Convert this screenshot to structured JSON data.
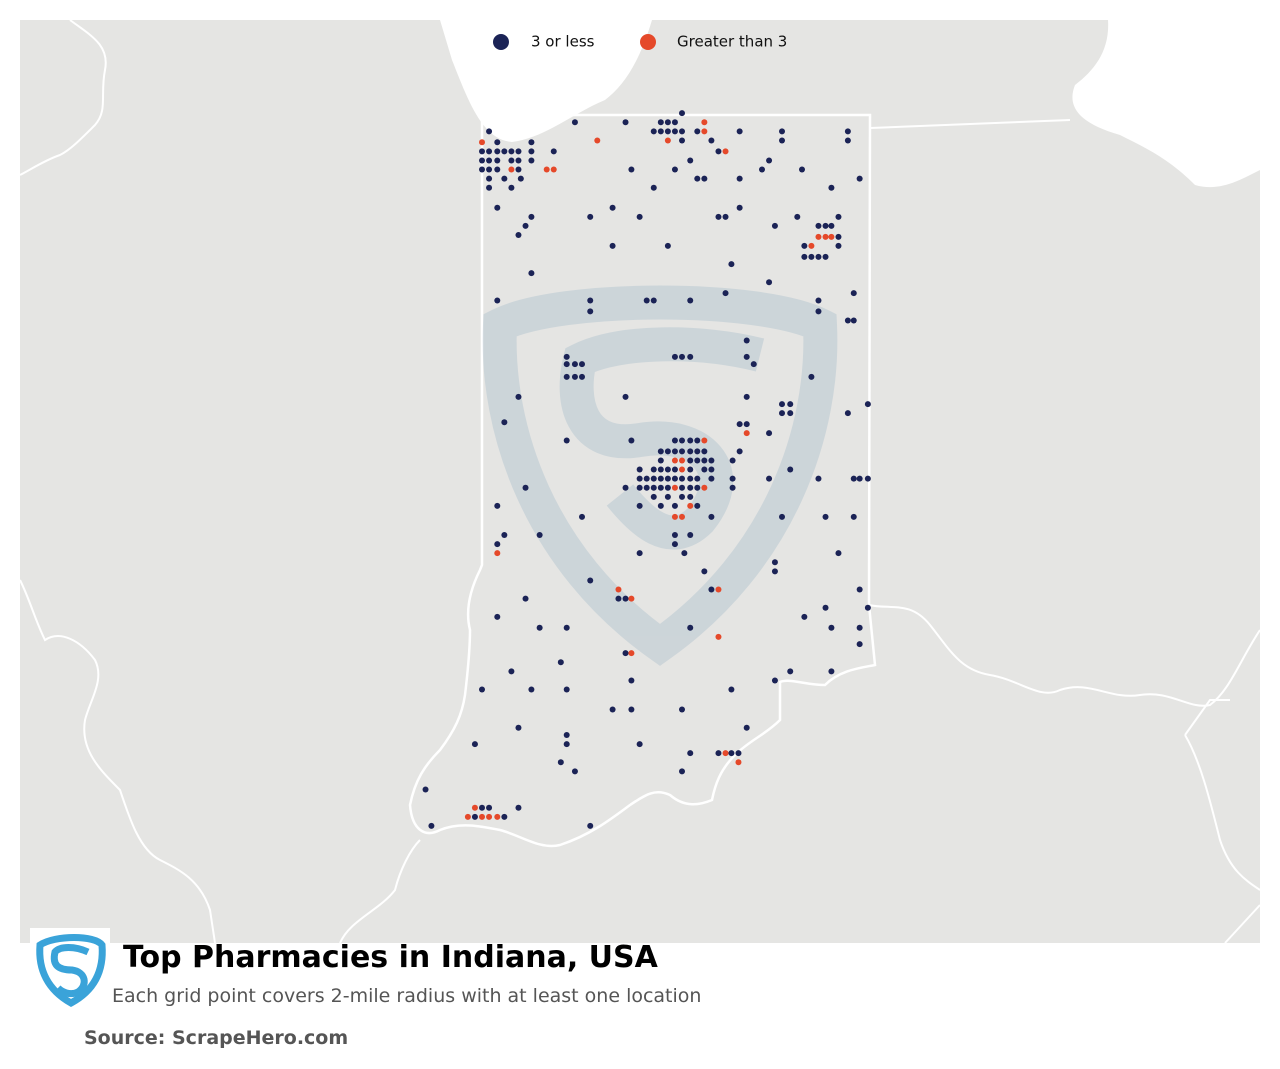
{
  "chart_data": {
    "type": "map",
    "title": "Top Pharmacies in Indiana, USA",
    "subtitle": "Each grid point covers 2-mile radius with at least one location",
    "source": "Source: ScrapeHero.com",
    "series": [
      {
        "name": "3 or less",
        "color": "#1b2356",
        "points": [
          [
            -88.04,
            41.67
          ],
          [
            -86.64,
            41.67
          ],
          [
            -86.58,
            41.67
          ],
          [
            -86.52,
            41.67
          ],
          [
            -86.46,
            41.67
          ],
          [
            -86.4,
            41.67
          ],
          [
            -86.27,
            41.67
          ],
          [
            -85.91,
            41.67
          ],
          [
            -85.55,
            41.67
          ],
          [
            -84.99,
            41.67
          ],
          [
            -87.97,
            41.61
          ],
          [
            -87.68,
            41.61
          ],
          [
            -86.4,
            41.62
          ],
          [
            -86.15,
            41.62
          ],
          [
            -85.55,
            41.62
          ],
          [
            -84.99,
            41.62
          ],
          [
            -88.1,
            41.56
          ],
          [
            -88.04,
            41.56
          ],
          [
            -87.97,
            41.56
          ],
          [
            -87.91,
            41.56
          ],
          [
            -87.85,
            41.56
          ],
          [
            -87.79,
            41.56
          ],
          [
            -87.68,
            41.56
          ],
          [
            -87.49,
            41.56
          ],
          [
            -86.09,
            41.56
          ],
          [
            -88.1,
            41.51
          ],
          [
            -88.04,
            41.51
          ],
          [
            -87.97,
            41.51
          ],
          [
            -87.85,
            41.51
          ],
          [
            -87.79,
            41.51
          ],
          [
            -87.68,
            41.51
          ],
          [
            -86.33,
            41.51
          ],
          [
            -85.66,
            41.51
          ],
          [
            -88.1,
            41.46
          ],
          [
            -88.04,
            41.46
          ],
          [
            -87.97,
            41.46
          ],
          [
            -87.79,
            41.46
          ],
          [
            -86.83,
            41.46
          ],
          [
            -86.46,
            41.46
          ],
          [
            -85.72,
            41.46
          ],
          [
            -85.38,
            41.46
          ],
          [
            -88.04,
            41.41
          ],
          [
            -87.91,
            41.41
          ],
          [
            -87.77,
            41.41
          ],
          [
            -86.27,
            41.41
          ],
          [
            -86.21,
            41.41
          ],
          [
            -85.91,
            41.41
          ],
          [
            -84.89,
            41.41
          ],
          [
            -88.04,
            41.36
          ],
          [
            -87.85,
            41.36
          ],
          [
            -86.64,
            41.36
          ],
          [
            -85.13,
            41.36
          ],
          [
            -86.4,
            41.77
          ],
          [
            -87.31,
            41.72
          ],
          [
            -86.88,
            41.72
          ],
          [
            -86.58,
            41.72
          ],
          [
            -86.52,
            41.72
          ],
          [
            -86.46,
            41.72
          ],
          [
            -87.97,
            41.25
          ],
          [
            -86.99,
            41.25
          ],
          [
            -85.91,
            41.25
          ],
          [
            -87.68,
            41.2
          ],
          [
            -87.18,
            41.2
          ],
          [
            -86.76,
            41.2
          ],
          [
            -86.09,
            41.2
          ],
          [
            -86.03,
            41.2
          ],
          [
            -85.42,
            41.2
          ],
          [
            -85.07,
            41.2
          ],
          [
            -87.73,
            41.15
          ],
          [
            -85.61,
            41.15
          ],
          [
            -85.24,
            41.15
          ],
          [
            -85.18,
            41.15
          ],
          [
            -85.13,
            41.15
          ],
          [
            -87.79,
            41.1
          ],
          [
            -85.07,
            41.09
          ],
          [
            -86.99,
            41.04
          ],
          [
            -86.52,
            41.04
          ],
          [
            -85.36,
            41.04
          ],
          [
            -85.07,
            41.04
          ],
          [
            -85.36,
            40.98
          ],
          [
            -85.3,
            40.98
          ],
          [
            -85.24,
            40.98
          ],
          [
            -85.18,
            40.98
          ],
          [
            -85.98,
            40.94
          ],
          [
            -87.68,
            40.89
          ],
          [
            -85.66,
            40.84
          ],
          [
            -86.03,
            40.78
          ],
          [
            -84.94,
            40.78
          ],
          [
            -87.97,
            40.74
          ],
          [
            -87.18,
            40.74
          ],
          [
            -86.7,
            40.74
          ],
          [
            -86.64,
            40.74
          ],
          [
            -86.33,
            40.74
          ],
          [
            -85.24,
            40.74
          ],
          [
            -87.18,
            40.68
          ],
          [
            -85.24,
            40.68
          ],
          [
            -84.99,
            40.63
          ],
          [
            -84.94,
            40.63
          ],
          [
            -85.85,
            40.52
          ],
          [
            -87.38,
            40.43
          ],
          [
            -86.46,
            40.43
          ],
          [
            -86.4,
            40.43
          ],
          [
            -86.33,
            40.43
          ],
          [
            -85.85,
            40.43
          ],
          [
            -87.38,
            40.39
          ],
          [
            -87.31,
            40.39
          ],
          [
            -87.25,
            40.39
          ],
          [
            -85.79,
            40.39
          ],
          [
            -87.38,
            40.32
          ],
          [
            -87.31,
            40.32
          ],
          [
            -87.25,
            40.32
          ],
          [
            -85.3,
            40.32
          ],
          [
            -87.79,
            40.21
          ],
          [
            -86.88,
            40.21
          ],
          [
            -85.85,
            40.21
          ],
          [
            -85.55,
            40.17
          ],
          [
            -85.48,
            40.17
          ],
          [
            -84.82,
            40.17
          ],
          [
            -85.55,
            40.12
          ],
          [
            -85.48,
            40.12
          ],
          [
            -84.99,
            40.12
          ],
          [
            -87.91,
            40.07
          ],
          [
            -85.91,
            40.06
          ],
          [
            -85.85,
            40.06
          ],
          [
            -85.66,
            40.01
          ],
          [
            -87.38,
            39.97
          ],
          [
            -86.83,
            39.97
          ],
          [
            -86.46,
            39.97
          ],
          [
            -86.4,
            39.97
          ],
          [
            -86.33,
            39.97
          ],
          [
            -86.27,
            39.97
          ],
          [
            -86.58,
            39.91
          ],
          [
            -86.52,
            39.91
          ],
          [
            -86.46,
            39.91
          ],
          [
            -86.4,
            39.91
          ],
          [
            -86.33,
            39.91
          ],
          [
            -86.27,
            39.91
          ],
          [
            -86.21,
            39.91
          ],
          [
            -85.91,
            39.91
          ],
          [
            -86.58,
            39.86
          ],
          [
            -86.33,
            39.86
          ],
          [
            -86.27,
            39.86
          ],
          [
            -86.21,
            39.86
          ],
          [
            -86.15,
            39.86
          ],
          [
            -85.97,
            39.86
          ],
          [
            -86.76,
            39.81
          ],
          [
            -86.64,
            39.81
          ],
          [
            -86.58,
            39.81
          ],
          [
            -86.52,
            39.81
          ],
          [
            -86.46,
            39.81
          ],
          [
            -86.33,
            39.81
          ],
          [
            -86.21,
            39.81
          ],
          [
            -86.15,
            39.81
          ],
          [
            -85.48,
            39.81
          ],
          [
            -86.76,
            39.76
          ],
          [
            -86.7,
            39.76
          ],
          [
            -86.64,
            39.76
          ],
          [
            -86.58,
            39.76
          ],
          [
            -86.52,
            39.76
          ],
          [
            -86.46,
            39.76
          ],
          [
            -86.4,
            39.76
          ],
          [
            -86.33,
            39.76
          ],
          [
            -86.27,
            39.76
          ],
          [
            -86.15,
            39.76
          ],
          [
            -85.97,
            39.76
          ],
          [
            -85.66,
            39.76
          ],
          [
            -85.24,
            39.76
          ],
          [
            -84.94,
            39.76
          ],
          [
            -84.89,
            39.76
          ],
          [
            -84.82,
            39.76
          ],
          [
            -87.73,
            39.71
          ],
          [
            -86.88,
            39.71
          ],
          [
            -86.76,
            39.71
          ],
          [
            -86.7,
            39.71
          ],
          [
            -86.64,
            39.71
          ],
          [
            -86.58,
            39.71
          ],
          [
            -86.52,
            39.71
          ],
          [
            -86.4,
            39.71
          ],
          [
            -86.33,
            39.71
          ],
          [
            -86.27,
            39.71
          ],
          [
            -85.97,
            39.71
          ],
          [
            -86.64,
            39.66
          ],
          [
            -86.52,
            39.66
          ],
          [
            -86.4,
            39.66
          ],
          [
            -86.33,
            39.66
          ],
          [
            -87.97,
            39.61
          ],
          [
            -86.76,
            39.61
          ],
          [
            -86.58,
            39.61
          ],
          [
            -86.46,
            39.61
          ],
          [
            -86.27,
            39.61
          ],
          [
            -87.25,
            39.55
          ],
          [
            -86.15,
            39.55
          ],
          [
            -85.55,
            39.55
          ],
          [
            -85.18,
            39.55
          ],
          [
            -84.94,
            39.55
          ],
          [
            -87.91,
            39.45
          ],
          [
            -87.61,
            39.45
          ],
          [
            -86.46,
            39.45
          ],
          [
            -86.33,
            39.45
          ],
          [
            -87.97,
            39.4
          ],
          [
            -86.46,
            39.4
          ],
          [
            -86.76,
            39.35
          ],
          [
            -86.38,
            39.35
          ],
          [
            -85.07,
            39.35
          ],
          [
            -85.61,
            39.3
          ],
          [
            -86.21,
            39.25
          ],
          [
            -85.61,
            39.25
          ],
          [
            -87.18,
            39.2
          ],
          [
            -86.15,
            39.15
          ],
          [
            -84.89,
            39.15
          ],
          [
            -87.73,
            39.1
          ],
          [
            -86.94,
            39.1
          ],
          [
            -86.88,
            39.1
          ],
          [
            -85.18,
            39.05
          ],
          [
            -84.82,
            39.05
          ],
          [
            -87.97,
            39.0
          ],
          [
            -85.36,
            39.0
          ],
          [
            -87.61,
            38.94
          ],
          [
            -87.38,
            38.94
          ],
          [
            -86.33,
            38.94
          ],
          [
            -85.13,
            38.94
          ],
          [
            -84.89,
            38.94
          ],
          [
            -84.89,
            38.85
          ],
          [
            -86.88,
            38.8
          ],
          [
            -87.43,
            38.75
          ],
          [
            -87.85,
            38.7
          ],
          [
            -85.48,
            38.7
          ],
          [
            -85.13,
            38.7
          ],
          [
            -86.83,
            38.65
          ],
          [
            -85.61,
            38.65
          ],
          [
            -88.1,
            38.6
          ],
          [
            -87.68,
            38.6
          ],
          [
            -87.38,
            38.6
          ],
          [
            -85.98,
            38.6
          ],
          [
            -86.99,
            38.49
          ],
          [
            -86.83,
            38.49
          ],
          [
            -86.4,
            38.49
          ],
          [
            -87.79,
            38.39
          ],
          [
            -85.85,
            38.39
          ],
          [
            -87.38,
            38.35
          ],
          [
            -88.16,
            38.3
          ],
          [
            -87.38,
            38.3
          ],
          [
            -86.76,
            38.3
          ],
          [
            -86.33,
            38.25
          ],
          [
            -86.09,
            38.25
          ],
          [
            -85.98,
            38.25
          ],
          [
            -85.92,
            38.25
          ],
          [
            -87.43,
            38.2
          ],
          [
            -87.31,
            38.15
          ],
          [
            -86.4,
            38.15
          ],
          [
            -88.58,
            38.05
          ],
          [
            -88.1,
            37.95
          ],
          [
            -88.04,
            37.95
          ],
          [
            -87.79,
            37.95
          ],
          [
            -88.16,
            37.9
          ],
          [
            -87.91,
            37.9
          ],
          [
            -88.53,
            37.85
          ],
          [
            -87.18,
            37.85
          ]
        ]
      },
      {
        "name": "Greater than 3",
        "color": "#e5492a",
        "points": [
          [
            -86.21,
            41.72
          ],
          [
            -86.21,
            41.67
          ],
          [
            -86.52,
            41.62
          ],
          [
            -87.12,
            41.62
          ],
          [
            -86.03,
            41.56
          ],
          [
            -87.85,
            41.46
          ],
          [
            -87.55,
            41.46
          ],
          [
            -87.49,
            41.46
          ],
          [
            -85.24,
            41.09
          ],
          [
            -85.18,
            41.09
          ],
          [
            -85.13,
            41.09
          ],
          [
            -85.3,
            41.04
          ],
          [
            -85.85,
            40.01
          ],
          [
            -86.21,
            39.97
          ],
          [
            -86.46,
            39.86
          ],
          [
            -86.4,
            39.86
          ],
          [
            -86.4,
            39.81
          ],
          [
            -86.46,
            39.71
          ],
          [
            -86.21,
            39.71
          ],
          [
            -86.33,
            39.61
          ],
          [
            -86.46,
            39.55
          ],
          [
            -86.4,
            39.55
          ],
          [
            -87.97,
            39.35
          ],
          [
            -86.94,
            39.15
          ],
          [
            -86.09,
            39.15
          ],
          [
            -86.83,
            39.1
          ],
          [
            -86.09,
            38.89
          ],
          [
            -86.83,
            38.8
          ],
          [
            -86.03,
            38.25
          ],
          [
            -85.92,
            38.2
          ],
          [
            -88.16,
            37.95
          ],
          [
            -88.22,
            37.9
          ],
          [
            -88.1,
            37.9
          ],
          [
            -88.04,
            37.9
          ],
          [
            -87.97,
            37.9
          ],
          [
            -88.1,
            41.61
          ]
        ]
      }
    ]
  }
}
